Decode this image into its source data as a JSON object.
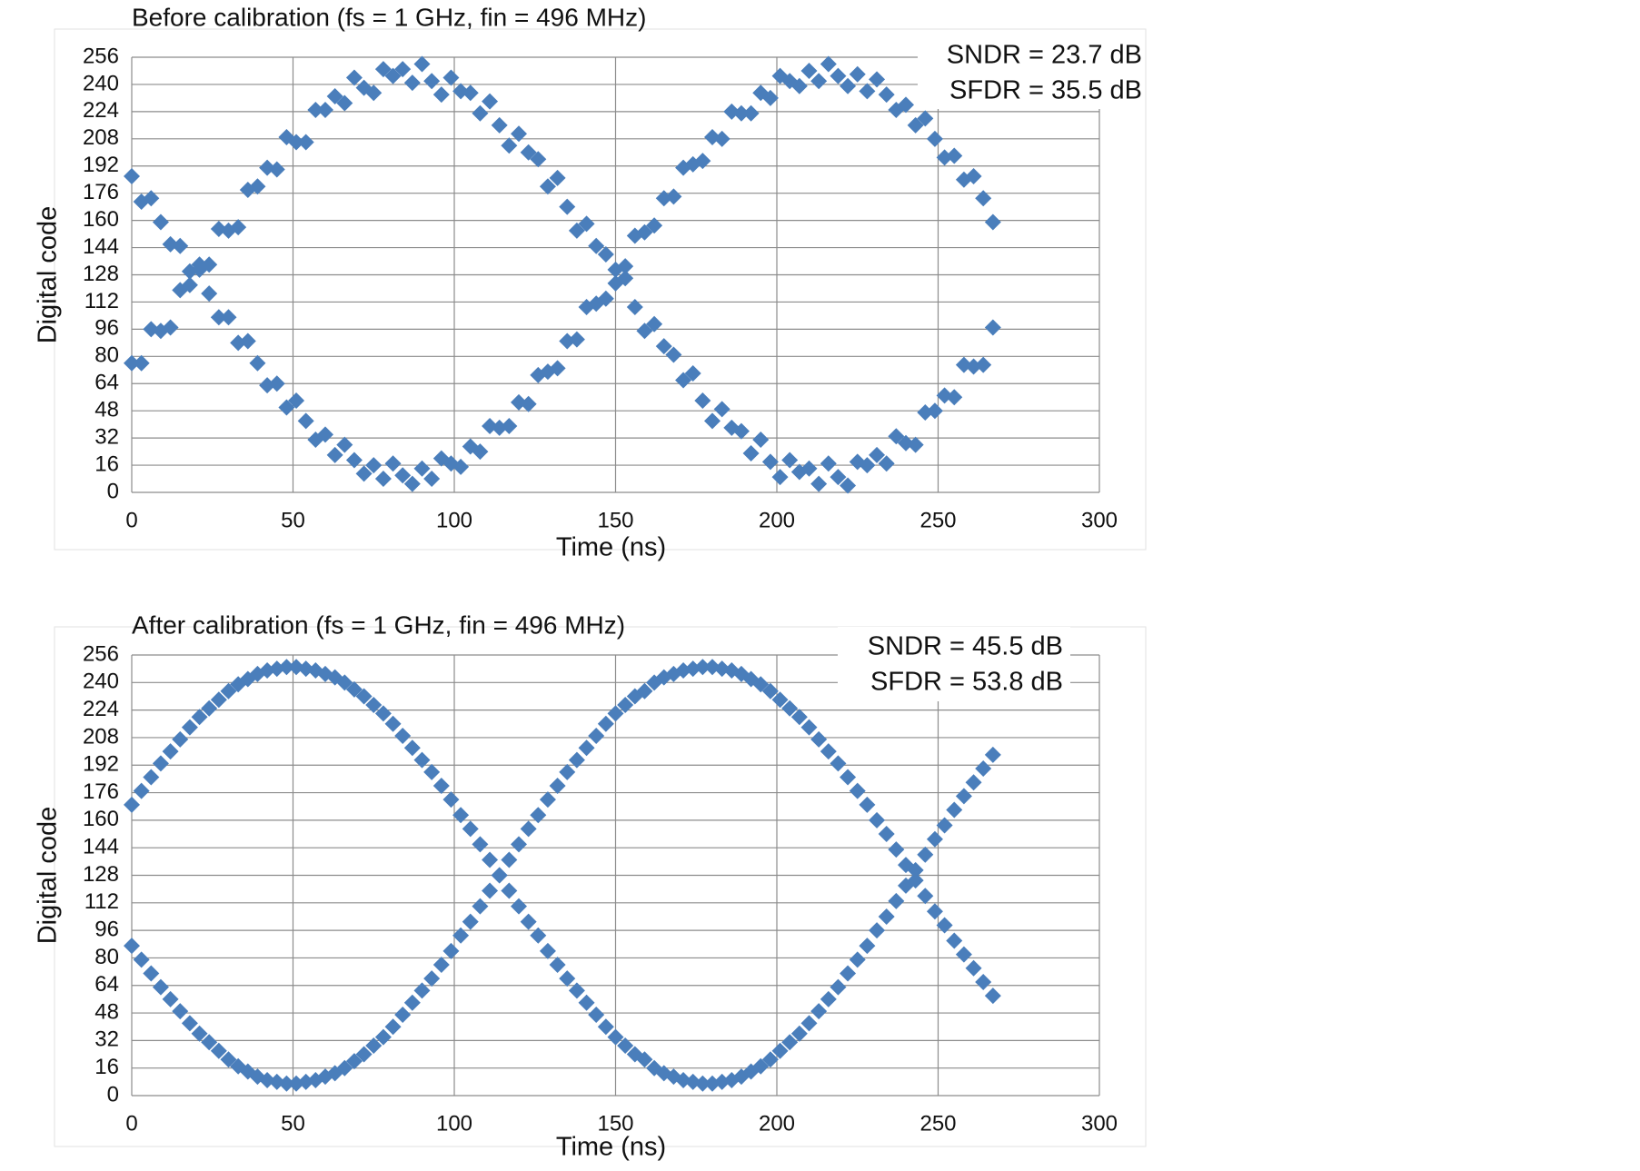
{
  "chart_data": [
    {
      "type": "scatter",
      "title": "Before calibration (fs = 1 GHz, fin = 496 MHz)",
      "x_label": "Time (ns)",
      "y_label": "Digital code",
      "annotations": [
        "SNDR = 23.7 dB",
        "SFDR = 35.5 dB"
      ],
      "xlim": [
        0,
        300
      ],
      "ylim": [
        0,
        256
      ],
      "xticks": [
        0,
        50,
        100,
        150,
        200,
        250,
        300
      ],
      "yticks": [
        0,
        16,
        32,
        48,
        64,
        80,
        96,
        112,
        128,
        144,
        160,
        176,
        192,
        208,
        224,
        240,
        256
      ],
      "grid": true,
      "x": [
        0,
        3,
        6,
        9,
        12,
        15,
        18,
        21,
        24,
        27,
        30,
        33,
        36,
        39,
        42,
        45,
        48,
        51,
        54,
        57,
        60,
        63,
        66,
        69,
        72,
        75,
        78,
        81,
        84,
        87,
        90,
        93,
        96,
        99,
        102,
        105,
        108,
        111,
        114,
        117,
        120,
        123,
        126,
        129,
        132,
        135,
        138,
        141,
        144,
        147,
        150,
        153,
        156,
        159,
        162,
        165,
        168,
        171,
        174,
        177,
        180,
        183,
        186,
        189,
        192,
        195,
        198,
        201,
        204,
        207,
        210,
        213,
        216,
        219,
        222,
        225,
        228,
        231,
        234,
        237,
        240,
        243,
        246,
        249,
        252,
        255,
        258,
        261,
        264,
        267
      ],
      "series": [
        {
          "color": "#4a7ebb",
          "values": [
            76,
            76,
            96,
            95,
            97,
            119,
            122,
            134,
            134,
            155,
            154,
            156,
            178,
            180,
            191,
            190,
            209,
            206,
            206,
            225,
            225,
            233,
            229,
            244,
            238,
            235,
            249,
            245,
            249,
            241,
            252,
            242,
            234,
            244,
            236,
            235,
            223,
            230,
            216,
            204,
            211,
            200,
            196,
            180,
            185,
            168,
            154,
            158,
            145,
            140,
            123,
            126,
            109,
            95,
            99,
            86,
            81,
            66,
            70,
            54,
            42,
            49,
            38,
            36,
            23,
            31,
            18,
            9,
            19,
            12,
            14,
            5,
            17,
            9,
            4,
            18,
            16,
            22,
            17,
            33,
            29,
            28,
            47,
            48,
            57,
            56,
            75,
            74,
            75,
            97
          ]
        },
        {
          "color": "#4a7ebb",
          "values": [
            186,
            171,
            173,
            159,
            146,
            145,
            130,
            131,
            117,
            103,
            103,
            88,
            89,
            76,
            63,
            64,
            50,
            54,
            42,
            31,
            34,
            22,
            28,
            19,
            11,
            16,
            8,
            17,
            10,
            5,
            14,
            8,
            20,
            17,
            15,
            27,
            24,
            39,
            38,
            39,
            53,
            52,
            69,
            71,
            73,
            89,
            90,
            109,
            111,
            114,
            131,
            133,
            151,
            153,
            157,
            173,
            174,
            191,
            193,
            195,
            209,
            208,
            224,
            223,
            223,
            235,
            232,
            245,
            242,
            239,
            248,
            242,
            252,
            245,
            239,
            246,
            236,
            243,
            234,
            225,
            228,
            216,
            220,
            208,
            197,
            198,
            184,
            186,
            173,
            159
          ]
        }
      ]
    },
    {
      "type": "scatter",
      "title": "After calibration (fs = 1 GHz, fin = 496 MHz)",
      "x_label": "Time (ns)",
      "y_label": "Digital code",
      "annotations": [
        "SNDR = 45.5 dB",
        "SFDR = 53.8 dB"
      ],
      "xlim": [
        0,
        300
      ],
      "ylim": [
        0,
        256
      ],
      "xticks": [
        0,
        50,
        100,
        150,
        200,
        250,
        300
      ],
      "yticks": [
        0,
        16,
        32,
        48,
        64,
        80,
        96,
        112,
        128,
        144,
        160,
        176,
        192,
        208,
        224,
        240,
        256
      ],
      "grid": true,
      "x": [
        0,
        3,
        6,
        9,
        12,
        15,
        18,
        21,
        24,
        27,
        30,
        33,
        36,
        39,
        42,
        45,
        48,
        51,
        54,
        57,
        60,
        63,
        66,
        69,
        72,
        75,
        78,
        81,
        84,
        87,
        90,
        93,
        96,
        99,
        102,
        105,
        108,
        111,
        114,
        117,
        120,
        123,
        126,
        129,
        132,
        135,
        138,
        141,
        144,
        147,
        150,
        153,
        156,
        159,
        162,
        165,
        168,
        171,
        174,
        177,
        180,
        183,
        186,
        189,
        192,
        195,
        198,
        201,
        204,
        207,
        210,
        213,
        216,
        219,
        222,
        225,
        228,
        231,
        234,
        237,
        240,
        243,
        246,
        249,
        252,
        255,
        258,
        261,
        264,
        267
      ],
      "series": [
        {
          "color": "#4a7ebb",
          "values": [
            169,
            177,
            185,
            193,
            200,
            207,
            214,
            220,
            225,
            230,
            235,
            239,
            242,
            245,
            247,
            248,
            249,
            249,
            248,
            247,
            245,
            243,
            240,
            236,
            232,
            227,
            222,
            216,
            209,
            202,
            195,
            188,
            180,
            172,
            163,
            155,
            146,
            137,
            128,
            119,
            110,
            101,
            93,
            84,
            76,
            68,
            61,
            54,
            47,
            40,
            34,
            29,
            24,
            21,
            16,
            13,
            11,
            9,
            8,
            7,
            7,
            8,
            9,
            11,
            14,
            17,
            21,
            26,
            31,
            36,
            42,
            49,
            56,
            63,
            71,
            79,
            87,
            96,
            104,
            113,
            122,
            131,
            140,
            149,
            157,
            166,
            174,
            182,
            190,
            198
          ]
        },
        {
          "color": "#4a7ebb",
          "values": [
            87,
            79,
            71,
            63,
            56,
            49,
            42,
            36,
            31,
            26,
            21,
            17,
            14,
            11,
            9,
            8,
            7,
            7,
            8,
            9,
            11,
            13,
            16,
            20,
            24,
            29,
            34,
            40,
            47,
            54,
            61,
            68,
            76,
            84,
            93,
            101,
            110,
            119,
            128,
            137,
            146,
            155,
            163,
            172,
            180,
            188,
            195,
            202,
            209,
            216,
            222,
            227,
            232,
            235,
            240,
            243,
            245,
            247,
            248,
            249,
            249,
            248,
            247,
            245,
            242,
            239,
            235,
            230,
            225,
            220,
            214,
            207,
            200,
            193,
            185,
            177,
            169,
            160,
            152,
            143,
            134,
            125,
            116,
            107,
            99,
            90,
            82,
            74,
            66,
            58
          ]
        }
      ]
    }
  ]
}
